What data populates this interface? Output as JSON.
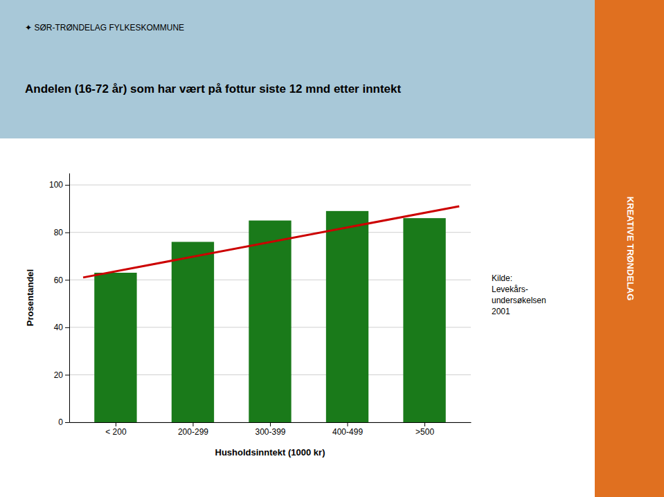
{
  "chart_data": {
    "type": "bar",
    "title": "Andelen (16-72 år) som har vært på fottur siste 12 mnd etter inntekt",
    "header_text": "✦  SØR-TRØNDELAG FYLKESKOMMUNE",
    "sidebar_text": "KREATIVE TRØNDELAG",
    "annotation": "Kilde:\nLevekårs-\nundersøkelsen\n2001",
    "xlabel": "Husholdsinntekt (1000 kr)",
    "ylabel": "Prosentandel",
    "categories": [
      "< 200",
      "200-299",
      "300-399",
      "400-499",
      ">500"
    ],
    "values": [
      63,
      76,
      85,
      89,
      86
    ],
    "color": "#1a7a1a",
    "trend_line": {
      "values": [
        61,
        91
      ],
      "color": "#cc0000"
    },
    "ylim": [
      0,
      105
    ],
    "yticks": [
      0,
      20,
      40,
      60,
      80,
      100
    ],
    "grid": true
  }
}
